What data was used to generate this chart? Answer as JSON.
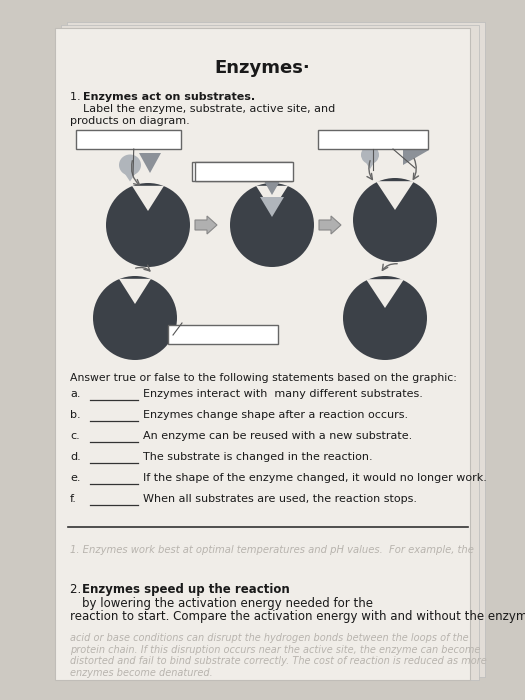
{
  "title": "Enzymes·",
  "bg_color": "#cdc9c2",
  "paper_color": "#f0ede8",
  "q1_bold": "Enzymes act on substrates.",
  "q1_rest": "  Label the enzyme, substrate, active site, and\nproducts on diagram.",
  "true_false_intro": "Answer true or false to the following statements based on the graphic:",
  "tf_items": [
    [
      "a.",
      "Enzymes interact with  many different substrates."
    ],
    [
      "b.",
      "Enzymes change shape after a reaction occurs."
    ],
    [
      "c.",
      "An enzyme can be reused with a new substrate."
    ],
    [
      "d.",
      "The substrate is changed in the reaction."
    ],
    [
      "e.",
      "If the shape of the enzyme changed, it would no longer work."
    ],
    [
      "f.",
      "When all substrates are used, the reaction stops."
    ]
  ],
  "q2_bold": "Enzymes speed up the reaction",
  "q2_rest": " by lowering the activation energy needed for the reaction to start. Compare the activation energy with and without the enzyme.",
  "faded1": "1. Enzymes work best at optimal temperatures and pH values.  For example, the",
  "faded2": "acid or base conditions can disrupt the hydrogen bonds between the loops of the\nprotein chain. If this disruption occurs near the active site, the enzyme can become\ndistorted and fail to bind substrate correctly. The cost of reaction is reduced as more\nenzymes become denatured.",
  "enzyme_dark": "#3c4148",
  "substrate_gray": "#8c9198",
  "substrate_light": "#b0b5bb",
  "label_box_fc": "#ffffff",
  "label_box_ec": "#666666",
  "arrow_fc": "#b0b0b0",
  "arrow_ec": "#888888"
}
